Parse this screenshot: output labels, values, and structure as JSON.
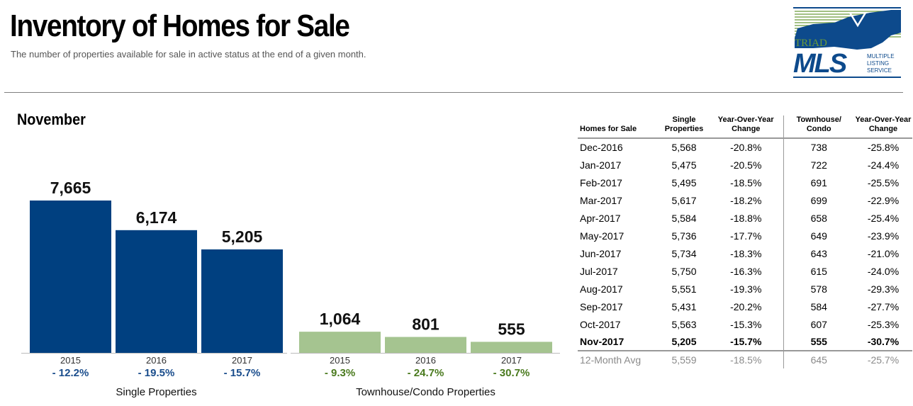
{
  "header": {
    "title": "Inventory of Homes for Sale",
    "subtitle": "The number of properties available for sale in active status at the end of a given month."
  },
  "logo": {
    "line1": "TRIAD",
    "line2": "MLS",
    "tag1": "MULTIPLE",
    "tag2": "LISTING",
    "tag3": "SERVICE",
    "color": "#0d4a8c",
    "accent": "#6a9a3a"
  },
  "month_label": "November",
  "chart_data": {
    "type": "bar",
    "ylim": [
      0,
      8200
    ],
    "groups": [
      {
        "name": "Single Properties",
        "color": "#004080",
        "change_color": "#1a4d8c",
        "categories": [
          "2015",
          "2016",
          "2017"
        ],
        "values": [
          7665,
          6174,
          5205
        ],
        "value_labels": [
          "7,665",
          "6,174",
          "5,205"
        ],
        "changes": [
          "- 12.2%",
          "- 19.5%",
          "- 15.7%"
        ]
      },
      {
        "name": "Townhouse/Condo Properties",
        "color": "#a5c490",
        "change_color": "#4a7a1e",
        "categories": [
          "2015",
          "2016",
          "2017"
        ],
        "values": [
          1064,
          801,
          555
        ],
        "value_labels": [
          "1,064",
          "801",
          "555"
        ],
        "changes": [
          "- 9.3%",
          "- 24.7%",
          "- 30.7%"
        ]
      }
    ]
  },
  "table": {
    "headers": {
      "c0": "Homes for Sale",
      "c1a": "Single",
      "c1b": "Properties",
      "c2a": "Year-Over-Year",
      "c2b": "Change",
      "c3a": "Townhouse/",
      "c3b": "Condo",
      "c4a": "Year-Over-Year",
      "c4b": "Change"
    },
    "rows": [
      [
        "Dec-2016",
        "5,568",
        "-20.8%",
        "738",
        "-25.8%"
      ],
      [
        "Jan-2017",
        "5,475",
        "-20.5%",
        "722",
        "-24.4%"
      ],
      [
        "Feb-2017",
        "5,495",
        "-18.5%",
        "691",
        "-25.5%"
      ],
      [
        "Mar-2017",
        "5,617",
        "-18.2%",
        "699",
        "-22.9%"
      ],
      [
        "Apr-2017",
        "5,584",
        "-18.8%",
        "658",
        "-25.4%"
      ],
      [
        "May-2017",
        "5,736",
        "-17.7%",
        "649",
        "-23.9%"
      ],
      [
        "Jun-2017",
        "5,734",
        "-18.3%",
        "643",
        "-21.0%"
      ],
      [
        "Jul-2017",
        "5,750",
        "-16.3%",
        "615",
        "-24.0%"
      ],
      [
        "Aug-2017",
        "5,551",
        "-19.3%",
        "578",
        "-29.3%"
      ],
      [
        "Sep-2017",
        "5,431",
        "-20.2%",
        "584",
        "-27.7%"
      ],
      [
        "Oct-2017",
        "5,563",
        "-15.3%",
        "607",
        "-25.3%"
      ]
    ],
    "current": [
      "Nov-2017",
      "5,205",
      "-15.7%",
      "555",
      "-30.7%"
    ],
    "average": [
      "12-Month Avg",
      "5,559",
      "-18.5%",
      "645",
      "-25.7%"
    ]
  }
}
